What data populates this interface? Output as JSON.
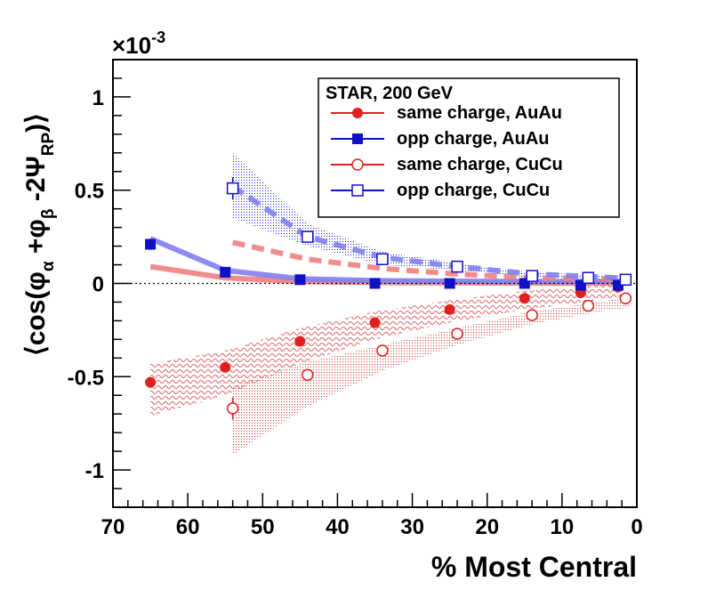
{
  "chart_data": {
    "type": "scatter",
    "xlabel": "% Most Central",
    "ylabel": "⟨cos(φα +φβ -2ΨRP)⟩",
    "ylabel_parts": {
      "open": "⟨cos(φ",
      "a": "α",
      "plus": " +φ",
      "b": "β",
      "mid": " -2Ψ",
      "rp": "RP",
      "close": ")⟩"
    },
    "exponent": "×10",
    "exponent_power": "-3",
    "x_axis": {
      "range": [
        70,
        0
      ],
      "ticks": [
        "70",
        "60",
        "50",
        "40",
        "30",
        "20",
        "10",
        "0"
      ],
      "tick_values": [
        70,
        60,
        50,
        40,
        30,
        20,
        10,
        0
      ]
    },
    "y_axis": {
      "range": [
        -1.2,
        1.2
      ],
      "ticks": [
        "-1",
        "-0.5",
        "0",
        "0.5",
        "1"
      ],
      "tick_values": [
        -1,
        -0.5,
        0,
        0.5,
        1
      ],
      "units": "1e-3"
    },
    "legend": {
      "title": "STAR,  200 GeV",
      "placement": "top-right",
      "entries": [
        {
          "label": "same charge, AuAu",
          "color": "#e02020",
          "marker": "filled-circle"
        },
        {
          "label": "opp charge, AuAu",
          "color": "#1010c8",
          "marker": "filled-square"
        },
        {
          "label": "same charge, CuCu",
          "color": "#e02020",
          "marker": "open-circle"
        },
        {
          "label": "opp charge, CuCu",
          "color": "#1010c8",
          "marker": "open-square"
        }
      ]
    },
    "series": [
      {
        "name": "same charge, AuAu",
        "color": "#e02020",
        "marker": "filled-circle",
        "x": [
          65,
          55,
          45,
          35,
          25,
          15,
          7.5,
          2.5
        ],
        "y": [
          -0.53,
          -0.45,
          -0.31,
          -0.21,
          -0.14,
          -0.08,
          -0.05,
          -0.02
        ],
        "err": [
          0.03,
          0.02,
          0.015,
          0.012,
          0.01,
          0.01,
          0.01,
          0.01
        ]
      },
      {
        "name": "opp charge, AuAu",
        "color": "#1010c8",
        "marker": "filled-square",
        "x": [
          65,
          55,
          45,
          35,
          25,
          15,
          7.5,
          2.5
        ],
        "y": [
          0.21,
          0.06,
          0.02,
          0.0,
          0.0,
          0.0,
          -0.01,
          -0.01
        ],
        "err": [
          0.03,
          0.015,
          0.01,
          0.01,
          0.01,
          0.01,
          0.01,
          0.01
        ]
      },
      {
        "name": "same charge, CuCu",
        "color": "#e02020",
        "marker": "open-circle",
        "x": [
          54,
          44,
          34,
          24,
          14,
          6.5,
          1.5
        ],
        "y": [
          -0.67,
          -0.49,
          -0.36,
          -0.27,
          -0.17,
          -0.12,
          -0.08
        ],
        "err": [
          0.06,
          0.03,
          0.02,
          0.02,
          0.015,
          0.01,
          0.01
        ]
      },
      {
        "name": "opp charge, CuCu",
        "color": "#1010c8",
        "marker": "open-square",
        "x": [
          54,
          44,
          34,
          24,
          14,
          6.5,
          1.5
        ],
        "y": [
          0.51,
          0.25,
          0.13,
          0.09,
          0.04,
          0.03,
          0.02
        ],
        "err": [
          0.06,
          0.02,
          0.02,
          0.015,
          0.01,
          0.01,
          0.01
        ]
      }
    ],
    "model_curves": [
      {
        "name": "AuAu same charge band",
        "color": "#f08080",
        "style": "solid",
        "x": [
          65,
          55,
          45,
          35,
          25,
          15,
          5,
          2
        ],
        "y": [
          0.09,
          0.03,
          0.01,
          0.005,
          0.003,
          0.002,
          0.001,
          0.001
        ]
      },
      {
        "name": "AuAu opp charge band",
        "color": "#8080f0",
        "style": "solid",
        "x": [
          65,
          55,
          45,
          35,
          25,
          15,
          5,
          2
        ],
        "y": [
          0.24,
          0.07,
          0.025,
          0.015,
          0.012,
          0.01,
          0.01,
          0.01
        ]
      },
      {
        "name": "CuCu same charge band",
        "color": "#f08080",
        "style": "dashed",
        "x": [
          54,
          44,
          34,
          24,
          14,
          5,
          1
        ],
        "y": [
          0.22,
          0.13,
          0.08,
          0.05,
          0.03,
          0.025,
          0.02
        ]
      },
      {
        "name": "CuCu opp charge band",
        "color": "#8080f0",
        "style": "dashed",
        "x": [
          54,
          44,
          34,
          24,
          14,
          5,
          1
        ],
        "y": [
          0.52,
          0.25,
          0.14,
          0.09,
          0.05,
          0.035,
          0.025
        ]
      }
    ],
    "error_bands": [
      {
        "name": "AuAu same charge systematic",
        "color": "#e02020",
        "pattern": "wavy",
        "x": [
          65,
          55,
          45,
          35,
          25,
          15,
          5,
          2
        ],
        "low": [
          -0.71,
          -0.6,
          -0.43,
          -0.3,
          -0.21,
          -0.14,
          -0.09,
          -0.07
        ],
        "high": [
          -0.43,
          -0.36,
          -0.24,
          -0.15,
          -0.09,
          -0.04,
          -0.01,
          0.0
        ]
      },
      {
        "name": "CuCu same charge systematic",
        "color": "#e02020",
        "pattern": "dots",
        "x": [
          54,
          44,
          34,
          24,
          14,
          5,
          1
        ],
        "low": [
          -0.92,
          -0.66,
          -0.47,
          -0.33,
          -0.22,
          -0.15,
          -0.13
        ],
        "high": [
          -0.55,
          -0.42,
          -0.33,
          -0.24,
          -0.15,
          -0.1,
          -0.07
        ]
      },
      {
        "name": "CuCu opp charge systematic",
        "color": "#1010c8",
        "pattern": "dots",
        "x": [
          54,
          44,
          34,
          24,
          14,
          5,
          1
        ],
        "low": [
          0.35,
          0.2,
          0.1,
          0.07,
          0.03,
          0.02,
          0.01
        ],
        "high": [
          0.7,
          0.32,
          0.17,
          0.11,
          0.06,
          0.045,
          0.035
        ]
      }
    ],
    "zero_line": {
      "style": "dotted",
      "y": 0
    }
  }
}
